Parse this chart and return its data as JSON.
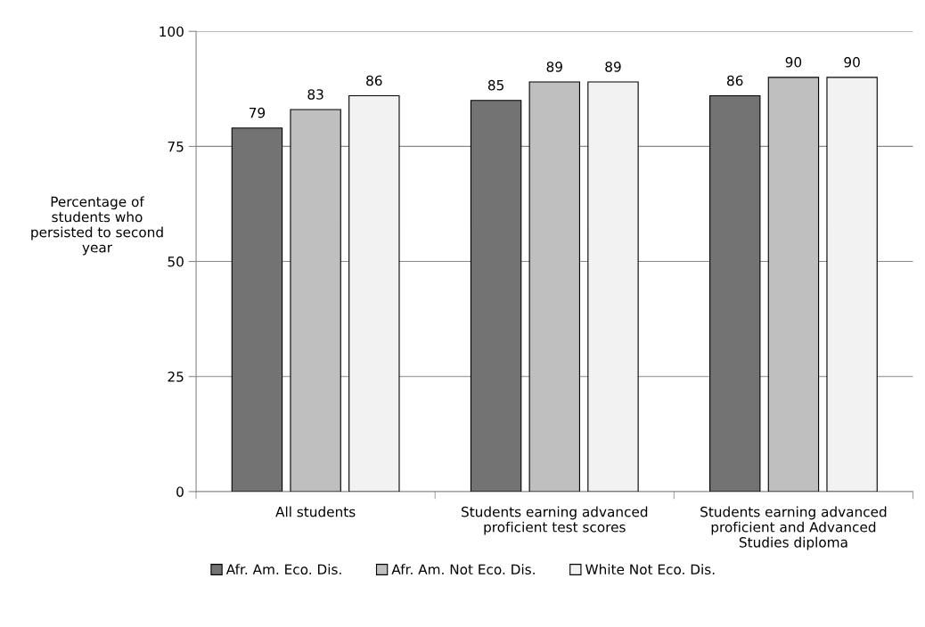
{
  "chart_data": {
    "type": "bar",
    "ylabel": "Percentage of\nstudents who\npersisted to second\nyear",
    "categories": [
      "All students",
      "Students earning advanced\nproficient test scores",
      "Students earning advanced\nproficient and Advanced\nStudies diploma"
    ],
    "series": [
      {
        "name": "Afr. Am. Eco. Dis.",
        "color": "#737373",
        "values": [
          79,
          85,
          86
        ]
      },
      {
        "name": "Afr. Am. Not Eco. Dis.",
        "color": "#bfbfbf",
        "values": [
          83,
          89,
          90
        ]
      },
      {
        "name": "White Not Eco. Dis.",
        "color": "#f2f2f2",
        "values": [
          86,
          89,
          90
        ]
      }
    ],
    "ylim": [
      0,
      100
    ],
    "yticks": [
      0,
      25,
      50,
      75,
      100
    ],
    "grid": "y",
    "legend": "bottom",
    "data_labels": true
  }
}
